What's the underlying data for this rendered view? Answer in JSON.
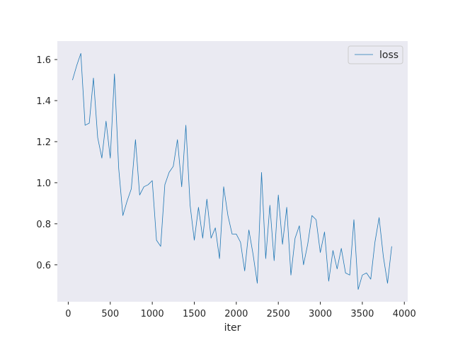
{
  "chart_data": {
    "type": "line",
    "title": "",
    "xlabel": "iter",
    "ylabel": "",
    "xlim": [
      -130,
      4040
    ],
    "ylim": [
      0.42,
      1.69
    ],
    "xticks": [
      0,
      500,
      1000,
      1500,
      2000,
      2500,
      3000,
      3500,
      4000
    ],
    "xtick_labels": [
      "0",
      "500",
      "1000",
      "1500",
      "2000",
      "2500",
      "3000",
      "3500",
      "4000"
    ],
    "yticks": [
      0.6,
      0.8,
      1.0,
      1.2,
      1.4,
      1.6
    ],
    "ytick_labels": [
      "0.6",
      "0.8",
      "1.0",
      "1.2",
      "1.4",
      "1.6"
    ],
    "grid": false,
    "legend_position": "top-right",
    "colors": {
      "background": "#eaeaf2",
      "line": "#1f77b4"
    },
    "series": [
      {
        "name": "loss",
        "x": [
          50,
          100,
          150,
          200,
          250,
          300,
          350,
          400,
          450,
          500,
          550,
          600,
          650,
          700,
          750,
          800,
          850,
          900,
          950,
          1000,
          1050,
          1100,
          1150,
          1200,
          1250,
          1300,
          1350,
          1400,
          1450,
          1500,
          1550,
          1600,
          1650,
          1700,
          1750,
          1800,
          1850,
          1900,
          1950,
          2000,
          2050,
          2100,
          2150,
          2200,
          2250,
          2300,
          2350,
          2400,
          2450,
          2500,
          2550,
          2600,
          2650,
          2700,
          2750,
          2800,
          2850,
          2900,
          2950,
          3000,
          3050,
          3100,
          3150,
          3200,
          3250,
          3300,
          3350,
          3400,
          3450,
          3500,
          3550,
          3600,
          3650,
          3700,
          3750,
          3800,
          3850
        ],
        "y": [
          1.5,
          1.57,
          1.63,
          1.28,
          1.29,
          1.51,
          1.22,
          1.12,
          1.3,
          1.12,
          1.53,
          1.07,
          0.84,
          0.91,
          0.97,
          1.21,
          0.94,
          0.98,
          0.99,
          1.01,
          0.72,
          0.69,
          0.99,
          1.05,
          1.08,
          1.21,
          0.98,
          1.28,
          0.89,
          0.72,
          0.88,
          0.73,
          0.92,
          0.73,
          0.78,
          0.63,
          0.98,
          0.84,
          0.75,
          0.75,
          0.71,
          0.57,
          0.77,
          0.65,
          0.51,
          1.05,
          0.63,
          0.89,
          0.62,
          0.94,
          0.7,
          0.88,
          0.55,
          0.73,
          0.79,
          0.6,
          0.7,
          0.84,
          0.82,
          0.66,
          0.76,
          0.52,
          0.67,
          0.58,
          0.68,
          0.56,
          0.55,
          0.82,
          0.48,
          0.55,
          0.56,
          0.53,
          0.71,
          0.83,
          0.64,
          0.51,
          0.69
        ]
      }
    ]
  }
}
